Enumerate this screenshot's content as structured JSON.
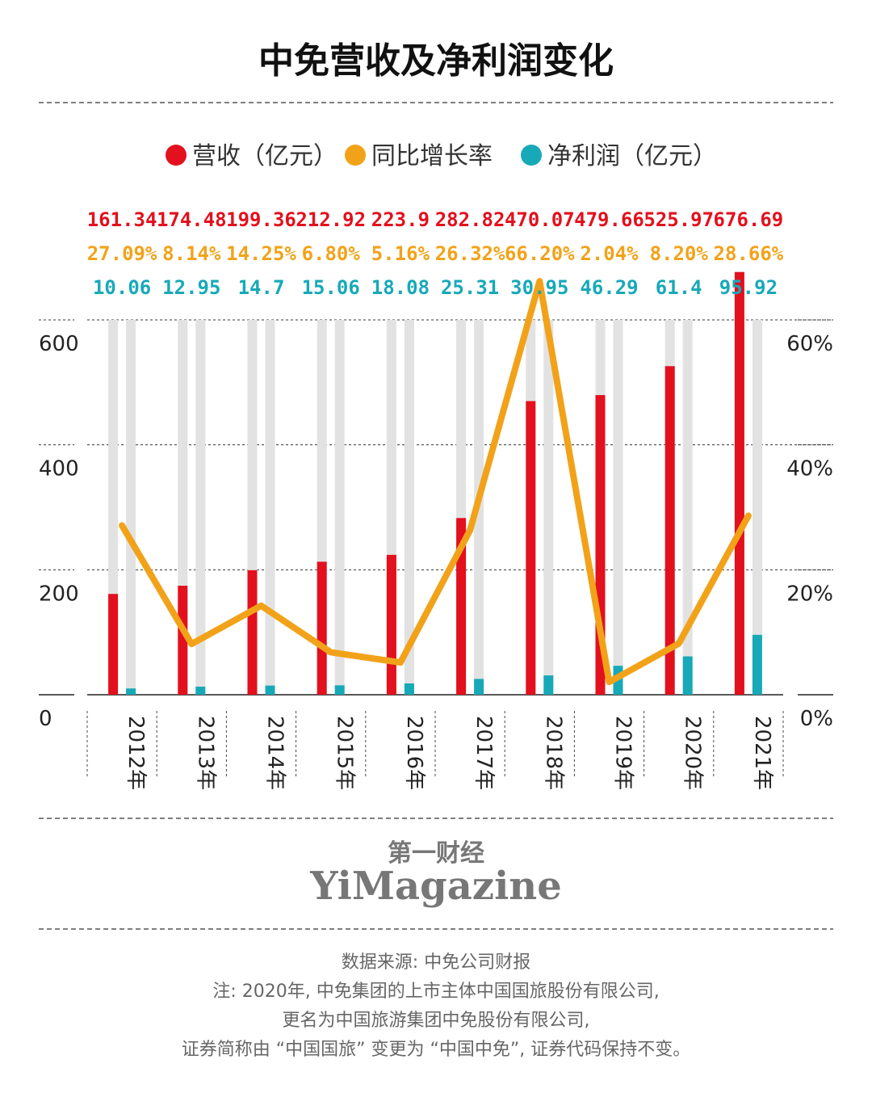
{
  "title": "中免营收及净利润变化",
  "colors": {
    "revenue": "#e3101d",
    "growth": "#f2a219",
    "profit": "#17a9b8",
    "track": "#e2e2e2"
  },
  "chart_data": {
    "type": "bar",
    "title": "中免营收及净利润变化",
    "categories": [
      "2012年",
      "2013年",
      "2014年",
      "2015年",
      "2016年",
      "2017年",
      "2018年",
      "2019年",
      "2020年",
      "2021年"
    ],
    "series": [
      {
        "name": "营收（亿元）",
        "type": "bar",
        "axis": "left",
        "values": [
          161.34,
          174.48,
          199.36,
          212.92,
          223.9,
          282.82,
          470.07,
          479.66,
          525.97,
          676.69
        ]
      },
      {
        "name": "同比增长率",
        "type": "line",
        "axis": "right",
        "values": [
          27.09,
          8.14,
          14.25,
          6.8,
          5.16,
          26.32,
          66.2,
          2.04,
          8.2,
          28.66
        ]
      },
      {
        "name": "净利润（亿元）",
        "type": "bar",
        "axis": "left",
        "values": [
          10.06,
          12.95,
          14.7,
          15.06,
          18.08,
          25.31,
          30.95,
          46.29,
          61.4,
          95.92
        ]
      }
    ],
    "value_labels": {
      "revenue": [
        "161.34",
        "174.48",
        "199.36",
        "212.92",
        "223.9",
        "282.82",
        "470.07",
        "479.66",
        "525.97",
        "676.69"
      ],
      "growth": [
        "27.09%",
        "8.14%",
        "14.25%",
        "6.80%",
        "5.16%",
        "26.32%",
        "66.20%",
        "2.04%",
        "8.20%",
        "28.66%"
      ],
      "profit": [
        "10.06",
        "12.95",
        "14.7",
        "15.06",
        "18.08",
        "25.31",
        "30.95",
        "46.29",
        "61.4",
        "95.92"
      ]
    },
    "y_left": {
      "ylim": [
        0,
        600
      ],
      "ticks": [
        "0",
        "200",
        "400",
        "600"
      ]
    },
    "y_right": {
      "ylim": [
        0,
        60
      ],
      "ticks": [
        "0%",
        "20%",
        "40%",
        "60%"
      ]
    },
    "grid": true,
    "legend": "top"
  },
  "brand": {
    "cn": "第一财经",
    "en": "YiMagazine"
  },
  "notes": [
    "数据来源: 中免公司财报",
    "注: 2020年, 中免集团的上市主体中国国旅股份有限公司,",
    "更名为中国旅游集团中免股份有限公司,",
    "证券简称由 “中国国旅” 变更为 “中国中免”, 证券代码保持不变。"
  ]
}
